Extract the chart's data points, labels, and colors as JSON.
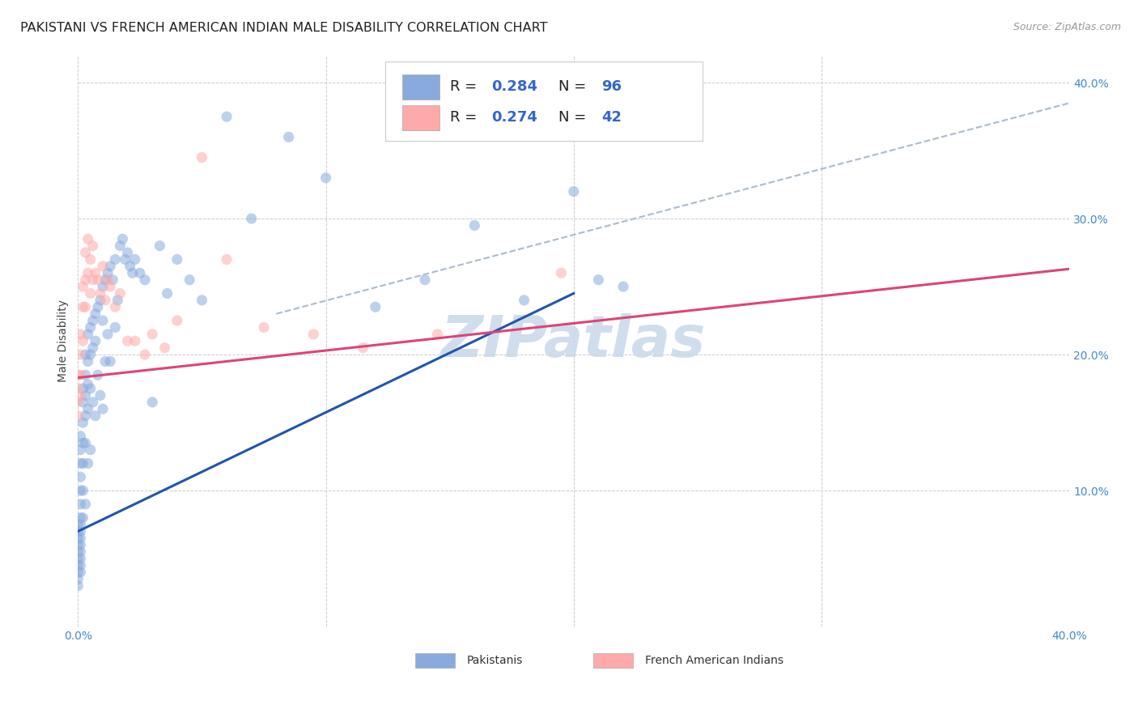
{
  "title": "PAKISTANI VS FRENCH AMERICAN INDIAN MALE DISABILITY CORRELATION CHART",
  "source": "Source: ZipAtlas.com",
  "ylabel": "Male Disability",
  "watermark": "ZIPatlas",
  "blue_scatter_x": [
    0.0,
    0.0,
    0.0,
    0.0,
    0.0,
    0.0,
    0.0,
    0.0,
    0.0,
    0.0,
    0.001,
    0.001,
    0.001,
    0.001,
    0.001,
    0.001,
    0.001,
    0.001,
    0.001,
    0.001,
    0.001,
    0.001,
    0.001,
    0.001,
    0.001,
    0.002,
    0.002,
    0.002,
    0.002,
    0.002,
    0.002,
    0.002,
    0.003,
    0.003,
    0.003,
    0.003,
    0.003,
    0.003,
    0.004,
    0.004,
    0.004,
    0.004,
    0.004,
    0.005,
    0.005,
    0.005,
    0.005,
    0.006,
    0.006,
    0.006,
    0.007,
    0.007,
    0.007,
    0.008,
    0.008,
    0.009,
    0.009,
    0.01,
    0.01,
    0.01,
    0.011,
    0.011,
    0.012,
    0.012,
    0.013,
    0.013,
    0.014,
    0.015,
    0.015,
    0.016,
    0.017,
    0.018,
    0.019,
    0.02,
    0.021,
    0.022,
    0.023,
    0.025,
    0.027,
    0.03,
    0.033,
    0.036,
    0.04,
    0.045,
    0.05,
    0.06,
    0.07,
    0.085,
    0.1,
    0.12,
    0.14,
    0.16,
    0.18,
    0.2,
    0.21,
    0.22
  ],
  "blue_scatter_y": [
    0.075,
    0.07,
    0.065,
    0.06,
    0.055,
    0.05,
    0.045,
    0.04,
    0.035,
    0.03,
    0.14,
    0.13,
    0.12,
    0.11,
    0.1,
    0.09,
    0.08,
    0.075,
    0.07,
    0.065,
    0.06,
    0.055,
    0.05,
    0.045,
    0.04,
    0.175,
    0.165,
    0.15,
    0.135,
    0.12,
    0.1,
    0.08,
    0.2,
    0.185,
    0.17,
    0.155,
    0.135,
    0.09,
    0.215,
    0.195,
    0.178,
    0.16,
    0.12,
    0.22,
    0.2,
    0.175,
    0.13,
    0.225,
    0.205,
    0.165,
    0.23,
    0.21,
    0.155,
    0.235,
    0.185,
    0.24,
    0.17,
    0.25,
    0.225,
    0.16,
    0.255,
    0.195,
    0.26,
    0.215,
    0.265,
    0.195,
    0.255,
    0.27,
    0.22,
    0.24,
    0.28,
    0.285,
    0.27,
    0.275,
    0.265,
    0.26,
    0.27,
    0.26,
    0.255,
    0.165,
    0.28,
    0.245,
    0.27,
    0.255,
    0.24,
    0.375,
    0.3,
    0.36,
    0.33,
    0.235,
    0.255,
    0.295,
    0.24,
    0.32,
    0.255,
    0.25
  ],
  "pink_scatter_x": [
    0.0,
    0.0,
    0.0,
    0.0,
    0.001,
    0.001,
    0.001,
    0.001,
    0.002,
    0.002,
    0.002,
    0.003,
    0.003,
    0.003,
    0.004,
    0.004,
    0.005,
    0.005,
    0.006,
    0.006,
    0.007,
    0.008,
    0.009,
    0.01,
    0.011,
    0.012,
    0.013,
    0.015,
    0.017,
    0.02,
    0.023,
    0.027,
    0.03,
    0.035,
    0.04,
    0.05,
    0.06,
    0.075,
    0.095,
    0.115,
    0.145,
    0.195
  ],
  "pink_scatter_y": [
    0.185,
    0.175,
    0.165,
    0.155,
    0.215,
    0.2,
    0.185,
    0.17,
    0.25,
    0.235,
    0.21,
    0.275,
    0.255,
    0.235,
    0.285,
    0.26,
    0.27,
    0.245,
    0.28,
    0.255,
    0.26,
    0.255,
    0.245,
    0.265,
    0.24,
    0.255,
    0.25,
    0.235,
    0.245,
    0.21,
    0.21,
    0.2,
    0.215,
    0.205,
    0.225,
    0.345,
    0.27,
    0.22,
    0.215,
    0.205,
    0.215,
    0.26
  ],
  "blue_line_x": [
    0.0,
    0.2
  ],
  "blue_line_y": [
    0.07,
    0.245
  ],
  "pink_line_x": [
    0.0,
    0.4
  ],
  "pink_line_y": [
    0.183,
    0.263
  ],
  "dashed_line_x": [
    0.08,
    0.4
  ],
  "dashed_line_y": [
    0.23,
    0.385
  ],
  "xlim": [
    0.0,
    0.4
  ],
  "ylim": [
    0.0,
    0.42
  ],
  "yticks": [
    0.0,
    0.1,
    0.2,
    0.3,
    0.4
  ],
  "ytick_labels": [
    "",
    "10.0%",
    "20.0%",
    "30.0%",
    "40.0%"
  ],
  "xticks": [
    0.0,
    0.1,
    0.2,
    0.3,
    0.4
  ],
  "xtick_labels": [
    "0.0%",
    "",
    "",
    "",
    "40.0%"
  ],
  "grid_color": "#cccccc",
  "blue_color": "#88aadd",
  "pink_color": "#ffaaaa",
  "blue_line_color": "#2255aa",
  "pink_line_color": "#dd4477",
  "dashed_color": "#aabbcc",
  "watermark_color": "#c8d8ea",
  "background_color": "#ffffff",
  "title_fontsize": 11.5,
  "label_fontsize": 10,
  "legend_fontsize": 13,
  "source_fontsize": 9,
  "scatter_size": 90,
  "scatter_alpha": 0.55
}
